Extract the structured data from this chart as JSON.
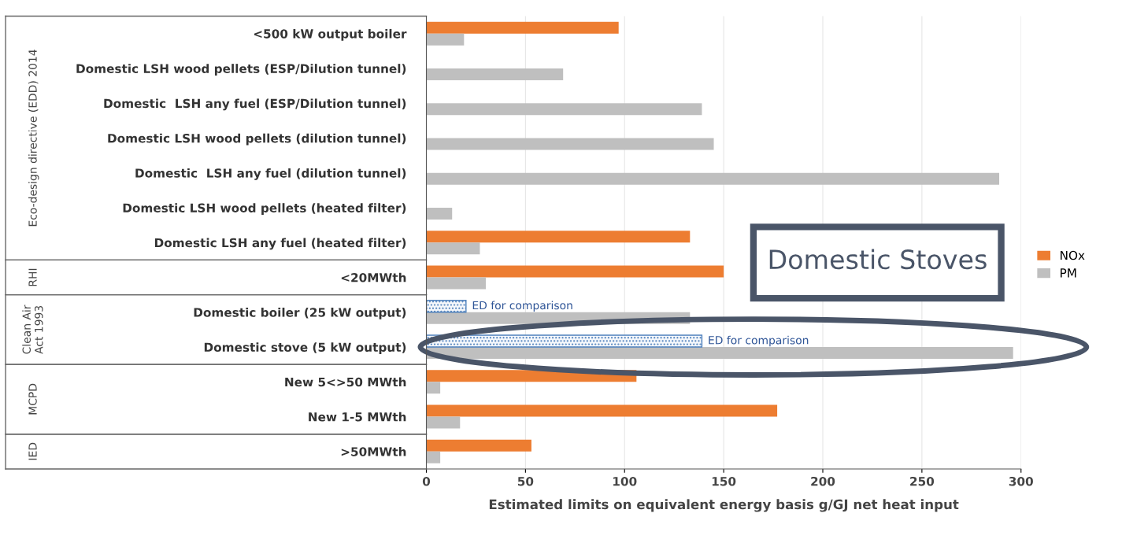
{
  "chart_data": {
    "type": "bar",
    "orientation": "horizontal",
    "categories": [
      "<500 kW output boiler",
      "Domestic LSH wood pellets (ESP/Dilution tunnel)",
      "Domestic  LSH any fuel (ESP/Dilution tunnel)",
      "Domestic LSH wood pellets (dilution tunnel)",
      "Domestic  LSH any fuel (dilution tunnel)",
      "Domestic LSH wood pellets (heated filter)",
      "Domestic LSH any fuel (heated filter)",
      "<20MWth",
      "Domestic boiler (25 kW output)",
      "Domestic stove (5 kW output)",
      "New 5<>50 MWth",
      "New 1-5 MWth",
      ">50MWth"
    ],
    "series": [
      {
        "name": "NOx",
        "color": "#ed7d31",
        "values": [
          97,
          null,
          null,
          null,
          null,
          null,
          133,
          150,
          null,
          null,
          106,
          177,
          53
        ]
      },
      {
        "name": "PM",
        "color": "#bfbfbf",
        "values": [
          19,
          69,
          139,
          145,
          289,
          13,
          27,
          30,
          133,
          296,
          7,
          17,
          7
        ]
      },
      {
        "color": "#4f81bd",
        "values": [
          null,
          null,
          null,
          null,
          null,
          null,
          null,
          null,
          20,
          139,
          null,
          null,
          null
        ]
      }
    ],
    "xlim": [
      0,
      300
    ],
    "xticks": [
      0,
      50,
      100,
      150,
      200,
      250,
      300
    ],
    "grid": "x",
    "legend": "right",
    "xlabel": "Estimated limits on equivalent energy basis g/GJ net heat input",
    "annotations": [
      "Eco-design directive (EDD) 2014",
      "RHI",
      "Clean Air Act 1993",
      "MCPD",
      "IED",
      {
        "text": "ED for comparison",
        "x": 20,
        "y": "Domestic boiler (25 kW output)"
      },
      {
        "text": "ED for comparison",
        "x": 139,
        "y": "Domestic stove (5 kW output)"
      },
      "Domestic Stoves"
    ]
  }
}
